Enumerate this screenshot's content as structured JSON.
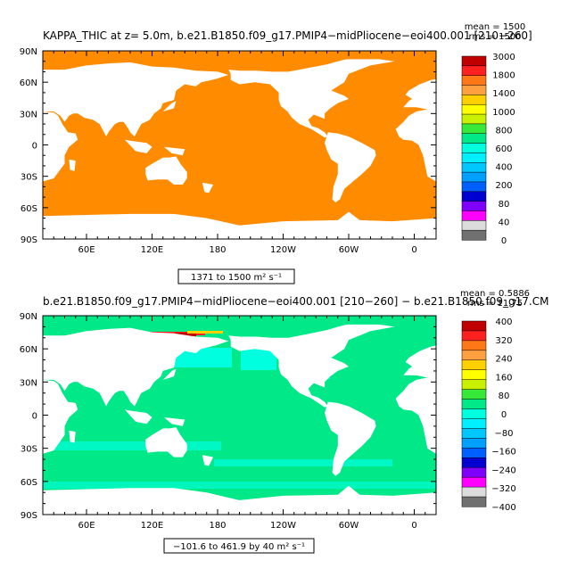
{
  "chart_data": [
    {
      "type": "heatmap",
      "title": "KAPPA_THIC at z=    5.0m, b.e21.B1850.f09_g17.PMIP4−midPliocene−eoi400.001 [210−260]",
      "stat_mean": "mean = 1500",
      "stat_rms": "rms = 1500",
      "range_note": "1371 to 1500 m² s⁻¹",
      "x_ticks": [
        "60E",
        "120E",
        "180",
        "120W",
        "60W",
        "0"
      ],
      "y_ticks": [
        "90N",
        "60N",
        "30N",
        "0",
        "30S",
        "60S",
        "90S"
      ],
      "xlim": [
        20,
        380
      ],
      "ylim": [
        -90,
        90
      ],
      "legend": {
        "placement": "right",
        "levels": [
          "3000",
          "1800",
          "1400",
          "1000",
          "800",
          "600",
          "400",
          "200",
          "80",
          "40",
          "0"
        ],
        "colors": [
          "#c00000",
          "#ff2020",
          "#ff7818",
          "#ffa040",
          "#ffd000",
          "#ffff00",
          "#c8f000",
          "#38e838",
          "#00e888",
          "#00ffdf",
          "#00f0ff",
          "#00c8ff",
          "#00a0ff",
          "#0060ff",
          "#0000d0",
          "#8000ff",
          "#ff00ff",
          "#dcdcdc",
          "#707070"
        ]
      },
      "field_value": 1500,
      "field_color": "#ff8c00"
    },
    {
      "type": "heatmap",
      "title": "b.e21.B1850.f09_g17.PMIP4−midPliocene−eoi400.001 [210−260] − b.e21.B1850.f09_g17.CM",
      "stat_mean": "mean = 0.5886",
      "stat_rms": "rms = 11.75",
      "range_note": "−101.6 to 461.9 by 40 m² s⁻¹",
      "x_ticks": [
        "60E",
        "120E",
        "180",
        "120W",
        "60W",
        "0"
      ],
      "y_ticks": [
        "90N",
        "60N",
        "30N",
        "0",
        "30S",
        "60S",
        "90S"
      ],
      "xlim": [
        20,
        380
      ],
      "ylim": [
        -90,
        90
      ],
      "legend": {
        "placement": "right",
        "levels": [
          "400",
          "320",
          "240",
          "160",
          "80",
          "0",
          "−80",
          "−160",
          "−240",
          "−320",
          "−400"
        ],
        "colors": [
          "#c00000",
          "#ff2020",
          "#ff7818",
          "#ffa040",
          "#ffd000",
          "#ffff00",
          "#c8f000",
          "#38e838",
          "#00e888",
          "#00ffdf",
          "#00f0ff",
          "#00c8ff",
          "#00a0ff",
          "#0060ff",
          "#0000d0",
          "#8000ff",
          "#ff00ff",
          "#dcdcdc",
          "#707070"
        ]
      },
      "field_value": 0,
      "field_color": "#00e888"
    }
  ]
}
